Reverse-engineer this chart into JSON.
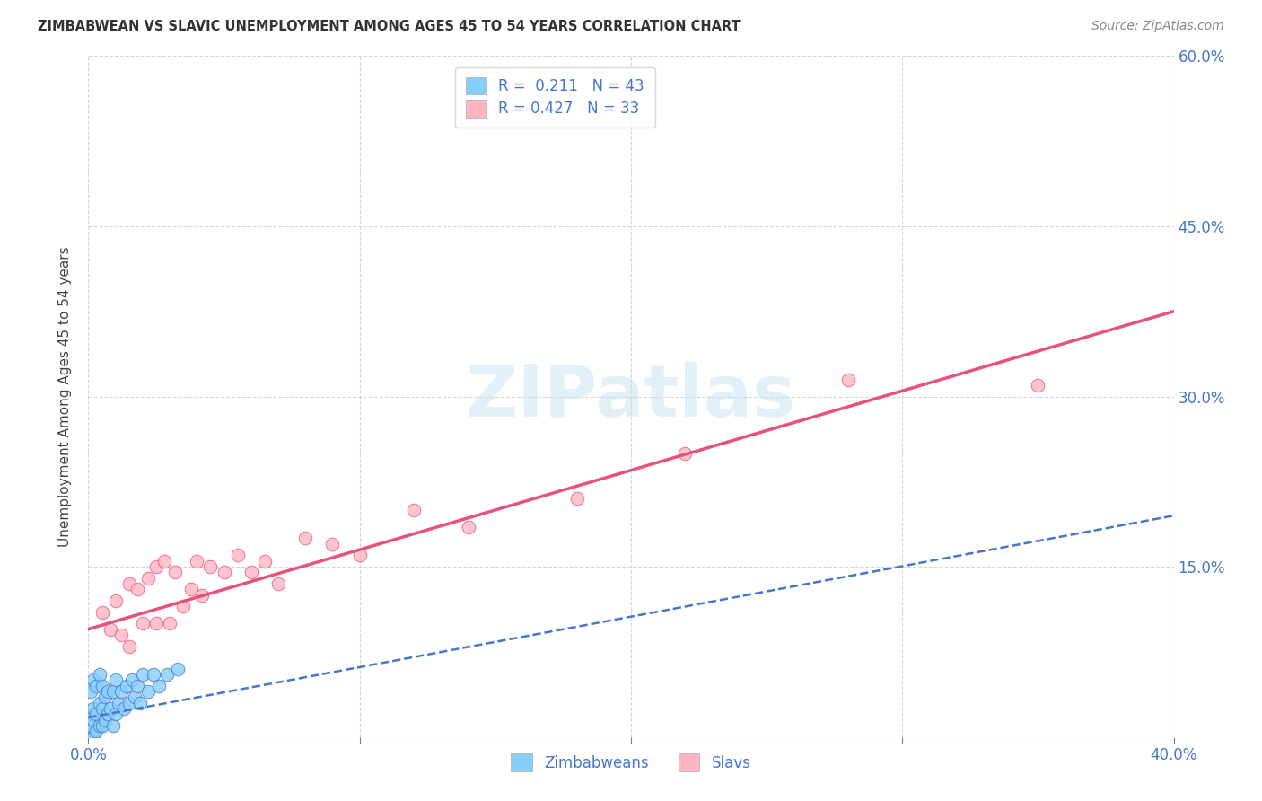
{
  "title": "ZIMBABWEAN VS SLAVIC UNEMPLOYMENT AMONG AGES 45 TO 54 YEARS CORRELATION CHART",
  "source": "Source: ZipAtlas.com",
  "ylabel": "Unemployment Among Ages 45 to 54 years",
  "xlim": [
    0.0,
    0.4
  ],
  "ylim": [
    0.0,
    0.6
  ],
  "xticks": [
    0.0,
    0.1,
    0.2,
    0.3,
    0.4
  ],
  "xtick_labels": [
    "0.0%",
    "",
    "",
    "",
    "40.0%"
  ],
  "yticks": [
    0.0,
    0.15,
    0.3,
    0.45,
    0.6
  ],
  "ytick_labels_right": [
    "",
    "15.0%",
    "30.0%",
    "45.0%",
    "60.0%"
  ],
  "color_blue": "#87CEFA",
  "color_pink": "#FFB6C1",
  "line_blue": "#4477CC",
  "line_pink": "#E8527A",
  "R_blue": 0.211,
  "N_blue": 43,
  "R_pink": 0.427,
  "N_pink": 33,
  "watermark": "ZIPatlas",
  "legend_label_blue": "Zimbabweans",
  "legend_label_pink": "Slavs",
  "zim_x": [
    0.0,
    0.0,
    0.001,
    0.001,
    0.001,
    0.001,
    0.002,
    0.002,
    0.002,
    0.002,
    0.003,
    0.003,
    0.003,
    0.004,
    0.004,
    0.004,
    0.005,
    0.005,
    0.005,
    0.006,
    0.006,
    0.007,
    0.007,
    0.008,
    0.009,
    0.009,
    0.01,
    0.01,
    0.011,
    0.012,
    0.013,
    0.014,
    0.015,
    0.016,
    0.017,
    0.018,
    0.019,
    0.02,
    0.022,
    0.024,
    0.026,
    0.029,
    0.033
  ],
  "zim_y": [
    0.0,
    0.005,
    0.0,
    0.01,
    0.02,
    0.04,
    0.0,
    0.015,
    0.025,
    0.05,
    0.005,
    0.02,
    0.045,
    0.01,
    0.03,
    0.055,
    0.01,
    0.025,
    0.045,
    0.015,
    0.035,
    0.02,
    0.04,
    0.025,
    0.01,
    0.04,
    0.02,
    0.05,
    0.03,
    0.04,
    0.025,
    0.045,
    0.03,
    0.05,
    0.035,
    0.045,
    0.03,
    0.055,
    0.04,
    0.055,
    0.045,
    0.055,
    0.06
  ],
  "slav_x": [
    0.005,
    0.008,
    0.01,
    0.012,
    0.015,
    0.015,
    0.018,
    0.02,
    0.022,
    0.025,
    0.025,
    0.028,
    0.03,
    0.032,
    0.035,
    0.038,
    0.04,
    0.042,
    0.045,
    0.05,
    0.055,
    0.06,
    0.065,
    0.07,
    0.08,
    0.09,
    0.1,
    0.12,
    0.14,
    0.18,
    0.22,
    0.28,
    0.35
  ],
  "slav_y": [
    0.11,
    0.095,
    0.12,
    0.09,
    0.08,
    0.135,
    0.13,
    0.1,
    0.14,
    0.1,
    0.15,
    0.155,
    0.1,
    0.145,
    0.115,
    0.13,
    0.155,
    0.125,
    0.15,
    0.145,
    0.16,
    0.145,
    0.155,
    0.135,
    0.175,
    0.17,
    0.16,
    0.2,
    0.185,
    0.21,
    0.25,
    0.315,
    0.31
  ],
  "pink_line_x0": 0.0,
  "pink_line_y0": 0.095,
  "pink_line_x1": 0.4,
  "pink_line_y1": 0.375,
  "blue_line_x0": 0.0,
  "blue_line_y0": 0.017,
  "blue_line_x1": 0.4,
  "blue_line_y1": 0.195
}
